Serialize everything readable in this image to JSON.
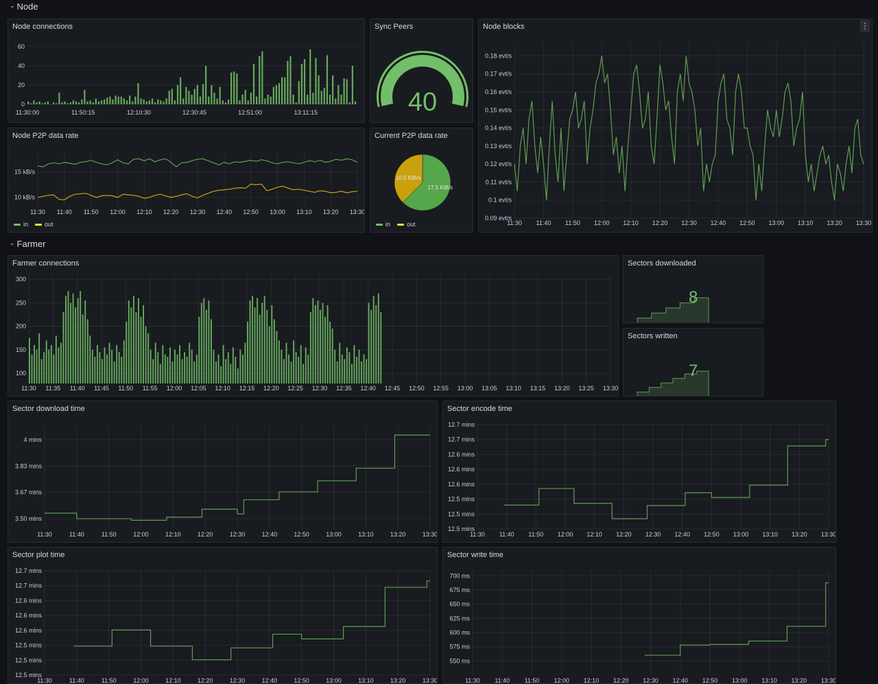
{
  "rows": {
    "node": "Node",
    "farmer": "Farmer"
  },
  "colors": {
    "background": "#111217",
    "panel": "#181b1f",
    "green": "#73bf69",
    "green_line": "#5f9e55",
    "yellow": "#fade2a",
    "yellow_line": "#c9a318",
    "pie_in": "#56a64b",
    "pie_out": "#c9a00d"
  },
  "icons": {
    "row_toggle": "chevron-down-icon",
    "panel_menu": "kebab-menu-icon"
  },
  "panel_menu_glyph": "⋮",
  "chart_data": [
    {
      "title": "Node connections",
      "type": "bar",
      "grid": "horizontal",
      "xlim": [
        "11:30:00",
        "13:30:00"
      ],
      "span": [
        "11:30:00",
        "13:30:00"
      ],
      "x_ticks": [
        "11:30:00",
        "11:50:15",
        "12:10:30",
        "12:30:45",
        "12:51:00",
        "13:11:15"
      ],
      "ylim": [
        0,
        62
      ],
      "y_ticks": [
        {
          "v": 0,
          "label": "0"
        },
        {
          "v": 20,
          "label": "20"
        },
        {
          "v": 40,
          "label": "40"
        },
        {
          "v": 60,
          "label": "60"
        }
      ],
      "values": [
        3,
        1,
        4,
        2,
        3,
        1,
        2,
        3,
        0,
        2,
        1,
        12,
        2,
        3,
        1,
        2,
        4,
        3,
        2,
        5,
        15,
        3,
        4,
        2,
        6,
        3,
        4,
        5,
        7,
        8,
        5,
        9,
        8,
        8,
        6,
        4,
        9,
        3,
        8,
        22,
        6,
        5,
        3,
        4,
        6,
        2,
        5,
        4,
        3,
        6,
        14,
        16,
        4,
        20,
        28,
        6,
        18,
        14,
        10,
        16,
        20,
        8,
        21,
        40,
        8,
        20,
        12,
        6,
        18,
        4,
        2,
        5,
        33,
        34,
        32,
        4,
        10,
        15,
        4,
        12,
        42,
        8,
        50,
        55,
        6,
        10,
        8,
        18,
        20,
        22,
        28,
        28,
        45,
        50,
        10,
        2,
        24,
        42,
        47,
        10,
        57,
        12,
        48,
        30,
        14,
        17,
        51,
        10,
        30,
        6,
        20,
        10,
        27,
        26,
        2,
        40,
        3
      ]
    },
    {
      "title": "Sync Peers",
      "type": "gauge",
      "value": 40,
      "fill_fraction": 1.0
    },
    {
      "title": "Node blocks",
      "type": "line",
      "grid": "both",
      "xlim": [
        "11:30",
        "13:30"
      ],
      "span": [
        "11:30",
        "13:30"
      ],
      "x_ticks": [
        "11:30",
        "11:40",
        "11:50",
        "12:00",
        "12:10",
        "12:20",
        "12:30",
        "12:40",
        "12:50",
        "13:00",
        "13:10",
        "13:20",
        "13:30"
      ],
      "ylim": [
        0.09,
        0.187
      ],
      "y_ticks": [
        {
          "v": 0.09,
          "label": "0.09 evt/s"
        },
        {
          "v": 0.1,
          "label": "0.1 evt/s"
        },
        {
          "v": 0.11,
          "label": "0.11 evt/s"
        },
        {
          "v": 0.12,
          "label": "0.12 evt/s"
        },
        {
          "v": 0.13,
          "label": "0.13 evt/s"
        },
        {
          "v": 0.14,
          "label": "0.14 evt/s"
        },
        {
          "v": 0.15,
          "label": "0.15 evt/s"
        },
        {
          "v": 0.16,
          "label": "0.16 evt/s"
        },
        {
          "v": 0.17,
          "label": "0.17 evt/s"
        },
        {
          "v": 0.18,
          "label": "0.18 evt/s"
        }
      ],
      "series": [
        {
          "color": "#5f9e55",
          "values": [
            0.12,
            0.105,
            0.13,
            0.14,
            0.12,
            0.145,
            0.155,
            0.13,
            0.115,
            0.135,
            0.12,
            0.1,
            0.13,
            0.155,
            0.125,
            0.11,
            0.14,
            0.105,
            0.125,
            0.145,
            0.15,
            0.16,
            0.14,
            0.145,
            0.155,
            0.12,
            0.14,
            0.15,
            0.165,
            0.17,
            0.18,
            0.165,
            0.17,
            0.15,
            0.125,
            0.135,
            0.115,
            0.13,
            0.105,
            0.13,
            0.15,
            0.17,
            0.175,
            0.16,
            0.14,
            0.145,
            0.16,
            0.13,
            0.12,
            0.145,
            0.175,
            0.165,
            0.15,
            0.155,
            0.135,
            0.12,
            0.16,
            0.17,
            0.155,
            0.18,
            0.165,
            0.16,
            0.15,
            0.13,
            0.14,
            0.105,
            0.12,
            0.11,
            0.12,
            0.125,
            0.155,
            0.165,
            0.17,
            0.145,
            0.14,
            0.125,
            0.16,
            0.17,
            0.16,
            0.14,
            0.14,
            0.13,
            0.125,
            0.1,
            0.12,
            0.105,
            0.13,
            0.15,
            0.14,
            0.135,
            0.15,
            0.135,
            0.145,
            0.16,
            0.165,
            0.155,
            0.13,
            0.14,
            0.145,
            0.16,
            0.125,
            0.11,
            0.12,
            0.105,
            0.115,
            0.125,
            0.13,
            0.12,
            0.125,
            0.11,
            0.1,
            0.12,
            0.115,
            0.105,
            0.12,
            0.13,
            0.115,
            0.14,
            0.145,
            0.125,
            0.12
          ]
        }
      ]
    },
    {
      "title": "Node P2P data rate",
      "type": "line",
      "grid": "both",
      "xlim": [
        "11:30",
        "13:30"
      ],
      "span": [
        "11:30",
        "13:30"
      ],
      "x_ticks": [
        "11:30",
        "11:40",
        "11:50",
        "12:00",
        "12:10",
        "12:20",
        "12:30",
        "12:40",
        "12:50",
        "13:00",
        "13:10",
        "13:20",
        "13:30"
      ],
      "ylim": [
        8.2,
        19
      ],
      "y_ticks": [
        {
          "v": 10,
          "label": "10 kB/s"
        },
        {
          "v": 15,
          "label": "15 kB/s"
        }
      ],
      "series": [
        {
          "name": "in",
          "color": "#5f9e55",
          "legend_color": "#73bf69",
          "values": [
            16.2,
            16.0,
            16.6,
            16.8,
            16.6,
            16.9,
            16.7,
            16.5,
            16.9,
            17.0,
            17.3,
            16.9,
            16.6,
            16.4,
            16.8,
            17.4,
            16.8,
            16.6,
            17.5,
            17.6,
            17.2,
            17.6,
            17.0,
            17.4,
            17.6,
            16.9,
            16.0,
            16.8,
            16.9,
            17.2,
            17.5,
            17.6,
            17.2,
            16.8,
            16.4,
            16.9,
            16.6,
            17.0,
            16.9,
            17.1,
            17.3,
            17.1,
            17.4,
            17.2,
            16.8,
            16.6,
            16.9,
            17.0,
            16.8,
            16.6,
            16.9,
            17.2,
            17.0,
            17.3,
            16.9,
            17.1,
            17.5,
            17.3,
            17.6,
            17.4,
            16.9
          ]
        },
        {
          "name": "out",
          "color": "#c9a318",
          "legend_color": "#fade2a",
          "values": [
            10.0,
            10.2,
            10.4,
            10.5,
            9.6,
            9.5,
            10.2,
            10.6,
            10.7,
            10.8,
            10.4,
            10.0,
            10.3,
            10.4,
            10.3,
            10.0,
            10.6,
            10.5,
            10.4,
            10.2,
            9.8,
            10.0,
            10.4,
            10.6,
            10.3,
            10.0,
            10.2,
            10.5,
            10.7,
            10.2,
            9.9,
            10.4,
            10.8,
            11.2,
            11.4,
            11.5,
            11.6,
            11.8,
            11.9,
            11.8,
            12.6,
            12.5,
            12.6,
            11.3,
            11.6,
            12.0,
            12.2,
            11.8,
            11.5,
            11.6,
            11.4,
            11.2,
            11.0,
            11.3,
            11.2,
            10.9,
            11.0,
            11.2,
            10.9,
            11.1,
            11.2
          ]
        }
      ]
    },
    {
      "title": "Current P2P data rate",
      "type": "pie",
      "slices": [
        {
          "name": "in",
          "value": 17.5,
          "label": "17.5 KiB/s",
          "color": "#56a64b",
          "legend_color": "#73bf69"
        },
        {
          "name": "out",
          "value": 10.5,
          "label": "10.5 KiB/s",
          "color": "#c9a00d",
          "legend_color": "#fade2a"
        }
      ]
    },
    {
      "title": "Farmer connections",
      "type": "bar",
      "grid": "both",
      "xlim": [
        "11:30",
        "13:30"
      ],
      "span": [
        "11:30",
        "12:43"
      ],
      "x_ticks": [
        "11:30",
        "11:35",
        "11:40",
        "11:45",
        "11:50",
        "11:55",
        "12:00",
        "12:05",
        "12:10",
        "12:15",
        "12:20",
        "12:25",
        "12:30",
        "12:35",
        "12:40",
        "12:45",
        "12:50",
        "12:55",
        "13:00",
        "13:05",
        "13:10",
        "13:15",
        "13:20",
        "13:25",
        "13:30"
      ],
      "ylim": [
        78,
        309
      ],
      "y_ticks": [
        {
          "v": 100,
          "label": "100"
        },
        {
          "v": 150,
          "label": "150"
        },
        {
          "v": 200,
          "label": "200"
        },
        {
          "v": 250,
          "label": "250"
        },
        {
          "v": 300,
          "label": "300"
        }
      ],
      "values": [
        175,
        140,
        160,
        150,
        185,
        130,
        145,
        170,
        150,
        160,
        140,
        180,
        155,
        165,
        230,
        265,
        275,
        250,
        270,
        240,
        260,
        275,
        225,
        255,
        215,
        180,
        150,
        135,
        160,
        145,
        130,
        155,
        140,
        165,
        150,
        125,
        160,
        145,
        135,
        170,
        210,
        255,
        240,
        265,
        230,
        260,
        220,
        245,
        200,
        185,
        150,
        130,
        165,
        145,
        120,
        160,
        140,
        135,
        155,
        125,
        150,
        140,
        160,
        130,
        145,
        135,
        165,
        150,
        125,
        140,
        220,
        250,
        260,
        235,
        255,
        215,
        150,
        125,
        140,
        115,
        160,
        130,
        145,
        120,
        155,
        135,
        110,
        150,
        140,
        165,
        210,
        255,
        265,
        240,
        260,
        225,
        250,
        265,
        235,
        200,
        245,
        215,
        190,
        170,
        150,
        130,
        165,
        140,
        125,
        170,
        145,
        135,
        160,
        120,
        155,
        140,
        230,
        260,
        245,
        255,
        235,
        250,
        220,
        245,
        210,
        195,
        150,
        125,
        165,
        140,
        130,
        155,
        145,
        120,
        160,
        135,
        150,
        125,
        140,
        130,
        250,
        235,
        265,
        245,
        270,
        230
      ]
    },
    {
      "title": "Sectors downloaded",
      "type": "stat",
      "value": "8",
      "sparkline": [
        4,
        5,
        6,
        7,
        8
      ]
    },
    {
      "title": "Sectors written",
      "type": "stat",
      "value": "7",
      "sparkline": [
        2,
        3,
        4,
        5,
        6,
        6.6
      ]
    },
    {
      "title": "Sector download time",
      "type": "step",
      "grid": "both",
      "xlim": [
        "11:30",
        "13:30"
      ],
      "end": "13:30",
      "x_ticks": [
        "11:30",
        "11:40",
        "11:50",
        "12:00",
        "12:10",
        "12:20",
        "12:30",
        "12:40",
        "12:50",
        "13:00",
        "13:10",
        "13:20",
        "13:30"
      ],
      "ylim": [
        3.435,
        4.087
      ],
      "y_ticks": [
        {
          "v": 3.5,
          "label": "3.50 mins"
        },
        {
          "v": 3.667,
          "label": "3.67 mins"
        },
        {
          "v": 3.833,
          "label": "3.83 mins"
        },
        {
          "v": 4.0,
          "label": "4 mins"
        }
      ],
      "points": [
        [
          "11:30",
          3.535
        ],
        [
          "11:40",
          3.5
        ],
        [
          "11:57",
          3.49
        ],
        [
          "12:08",
          3.51
        ],
        [
          "12:19",
          3.56
        ],
        [
          "12:30",
          3.53
        ],
        [
          "12:32",
          3.62
        ],
        [
          "12:43",
          3.67
        ],
        [
          "12:55",
          3.74
        ],
        [
          "13:07",
          3.82
        ],
        [
          "13:19",
          4.03
        ]
      ]
    },
    {
      "title": "Sector encode time",
      "type": "step",
      "grid": "both",
      "xlim": [
        "11:30",
        "13:30"
      ],
      "end": "13:30",
      "x_ticks": [
        "11:30",
        "11:40",
        "11:50",
        "12:00",
        "12:10",
        "12:20",
        "12:30",
        "12:40",
        "12:50",
        "13:00",
        "13:10",
        "13:20",
        "13:30"
      ],
      "ylim": [
        12.47,
        12.715
      ],
      "y_ticks": [
        {
          "v": 12.47,
          "label": "12.5 mins"
        },
        {
          "v": 12.505,
          "label": "12.5 mins"
        },
        {
          "v": 12.54,
          "label": "12.5 mins"
        },
        {
          "v": 12.575,
          "label": "12.6 mins"
        },
        {
          "v": 12.61,
          "label": "12.6 mins"
        },
        {
          "v": 12.645,
          "label": "12.6 mins"
        },
        {
          "v": 12.68,
          "label": "12.7 mins"
        },
        {
          "v": 12.715,
          "label": "12.7 mins"
        }
      ],
      "points": [
        [
          "11:39",
          12.526
        ],
        [
          "11:51",
          12.565
        ],
        [
          "12:03",
          12.53
        ],
        [
          "12:16",
          12.494
        ],
        [
          "12:28",
          12.525
        ],
        [
          "12:41",
          12.555
        ],
        [
          "12:50",
          12.544
        ],
        [
          "13:03",
          12.573
        ],
        [
          "13:16",
          12.665
        ],
        [
          "13:29",
          12.68
        ]
      ]
    },
    {
      "title": "Sector plot time",
      "type": "step",
      "grid": "both",
      "xlim": [
        "11:30",
        "13:30"
      ],
      "end": "13:30",
      "x_ticks": [
        "11:30",
        "11:40",
        "11:50",
        "12:00",
        "12:10",
        "12:20",
        "12:30",
        "12:40",
        "12:50",
        "13:00",
        "13:10",
        "13:20",
        "13:30"
      ],
      "ylim": [
        12.47,
        12.715
      ],
      "y_ticks": [
        {
          "v": 12.47,
          "label": "12.5 mins"
        },
        {
          "v": 12.505,
          "label": "12.5 mins"
        },
        {
          "v": 12.54,
          "label": "12.5 mins"
        },
        {
          "v": 12.575,
          "label": "12.6 mins"
        },
        {
          "v": 12.61,
          "label": "12.6 mins"
        },
        {
          "v": 12.645,
          "label": "12.6 mins"
        },
        {
          "v": 12.68,
          "label": "12.7 mins"
        },
        {
          "v": 12.715,
          "label": "12.7 mins"
        }
      ],
      "points": [
        [
          "11:39",
          12.538
        ],
        [
          "11:51",
          12.576
        ],
        [
          "12:03",
          12.538
        ],
        [
          "12:16",
          12.506
        ],
        [
          "12:28",
          12.534
        ],
        [
          "12:41",
          12.566
        ],
        [
          "12:50",
          12.555
        ],
        [
          "13:03",
          12.584
        ],
        [
          "13:16",
          12.676
        ],
        [
          "13:29",
          12.691
        ]
      ]
    },
    {
      "title": "Sector write time",
      "type": "step",
      "grid": "both",
      "xlim": [
        "11:30",
        "13:30"
      ],
      "end": "13:30",
      "x_ticks": [
        "11:30",
        "11:40",
        "11:50",
        "12:00",
        "12:10",
        "12:20",
        "12:30",
        "12:40",
        "12:50",
        "13:00",
        "13:10",
        "13:20",
        "13:30"
      ],
      "ylim": [
        525,
        709
      ],
      "y_ticks": [
        {
          "v": 550,
          "label": "550 ms"
        },
        {
          "v": 575,
          "label": "575 ms"
        },
        {
          "v": 600,
          "label": "600 ms"
        },
        {
          "v": 625,
          "label": "625 ms"
        },
        {
          "v": 650,
          "label": "650 ms"
        },
        {
          "v": 675,
          "label": "675 ms"
        },
        {
          "v": 700,
          "label": "700 ms"
        }
      ],
      "points": [
        [
          "12:28",
          560
        ],
        [
          "12:40",
          578
        ],
        [
          "12:50",
          579
        ],
        [
          "13:03",
          585
        ],
        [
          "13:16",
          611
        ],
        [
          "13:29",
          688
        ]
      ]
    }
  ]
}
